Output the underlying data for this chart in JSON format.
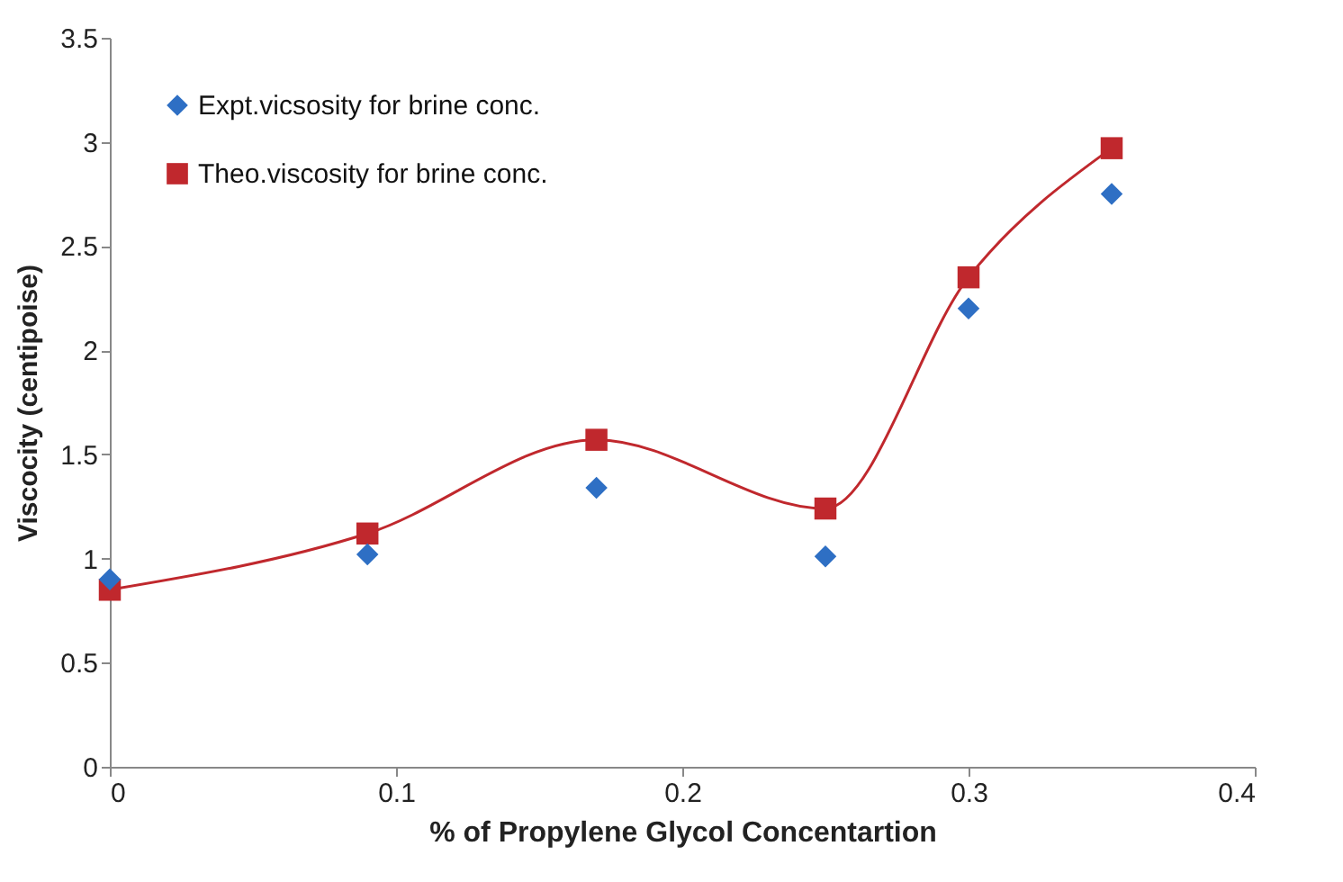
{
  "chart_data": {
    "type": "line",
    "xlabel": "% of  Propylene Glycol  Concentartion",
    "ylabel": "Viscocity (centipoise)",
    "x": [
      0,
      0.09,
      0.17,
      0.25,
      0.3,
      0.35
    ],
    "xlim": [
      0,
      0.4
    ],
    "xticks": [
      0,
      0.1,
      0.2,
      0.3,
      0.4
    ],
    "ylim": [
      0,
      3.5
    ],
    "yticks": [
      0,
      0.5,
      1,
      1.5,
      2,
      2.5,
      3,
      3.5
    ],
    "grid": false,
    "legend": "top left",
    "series": [
      {
        "name": "Expt.vicsosity for brine conc.",
        "type": "scatter",
        "marker": "diamond",
        "color": "#2e6fc4",
        "values": [
          0.9,
          1.02,
          1.34,
          1.01,
          2.2,
          2.75
        ]
      },
      {
        "name": "Theo.viscosity for brine conc.",
        "type": "line",
        "marker": "square",
        "color": "#c0282d",
        "values": [
          0.85,
          1.12,
          1.57,
          1.24,
          2.35,
          2.97
        ]
      }
    ]
  }
}
